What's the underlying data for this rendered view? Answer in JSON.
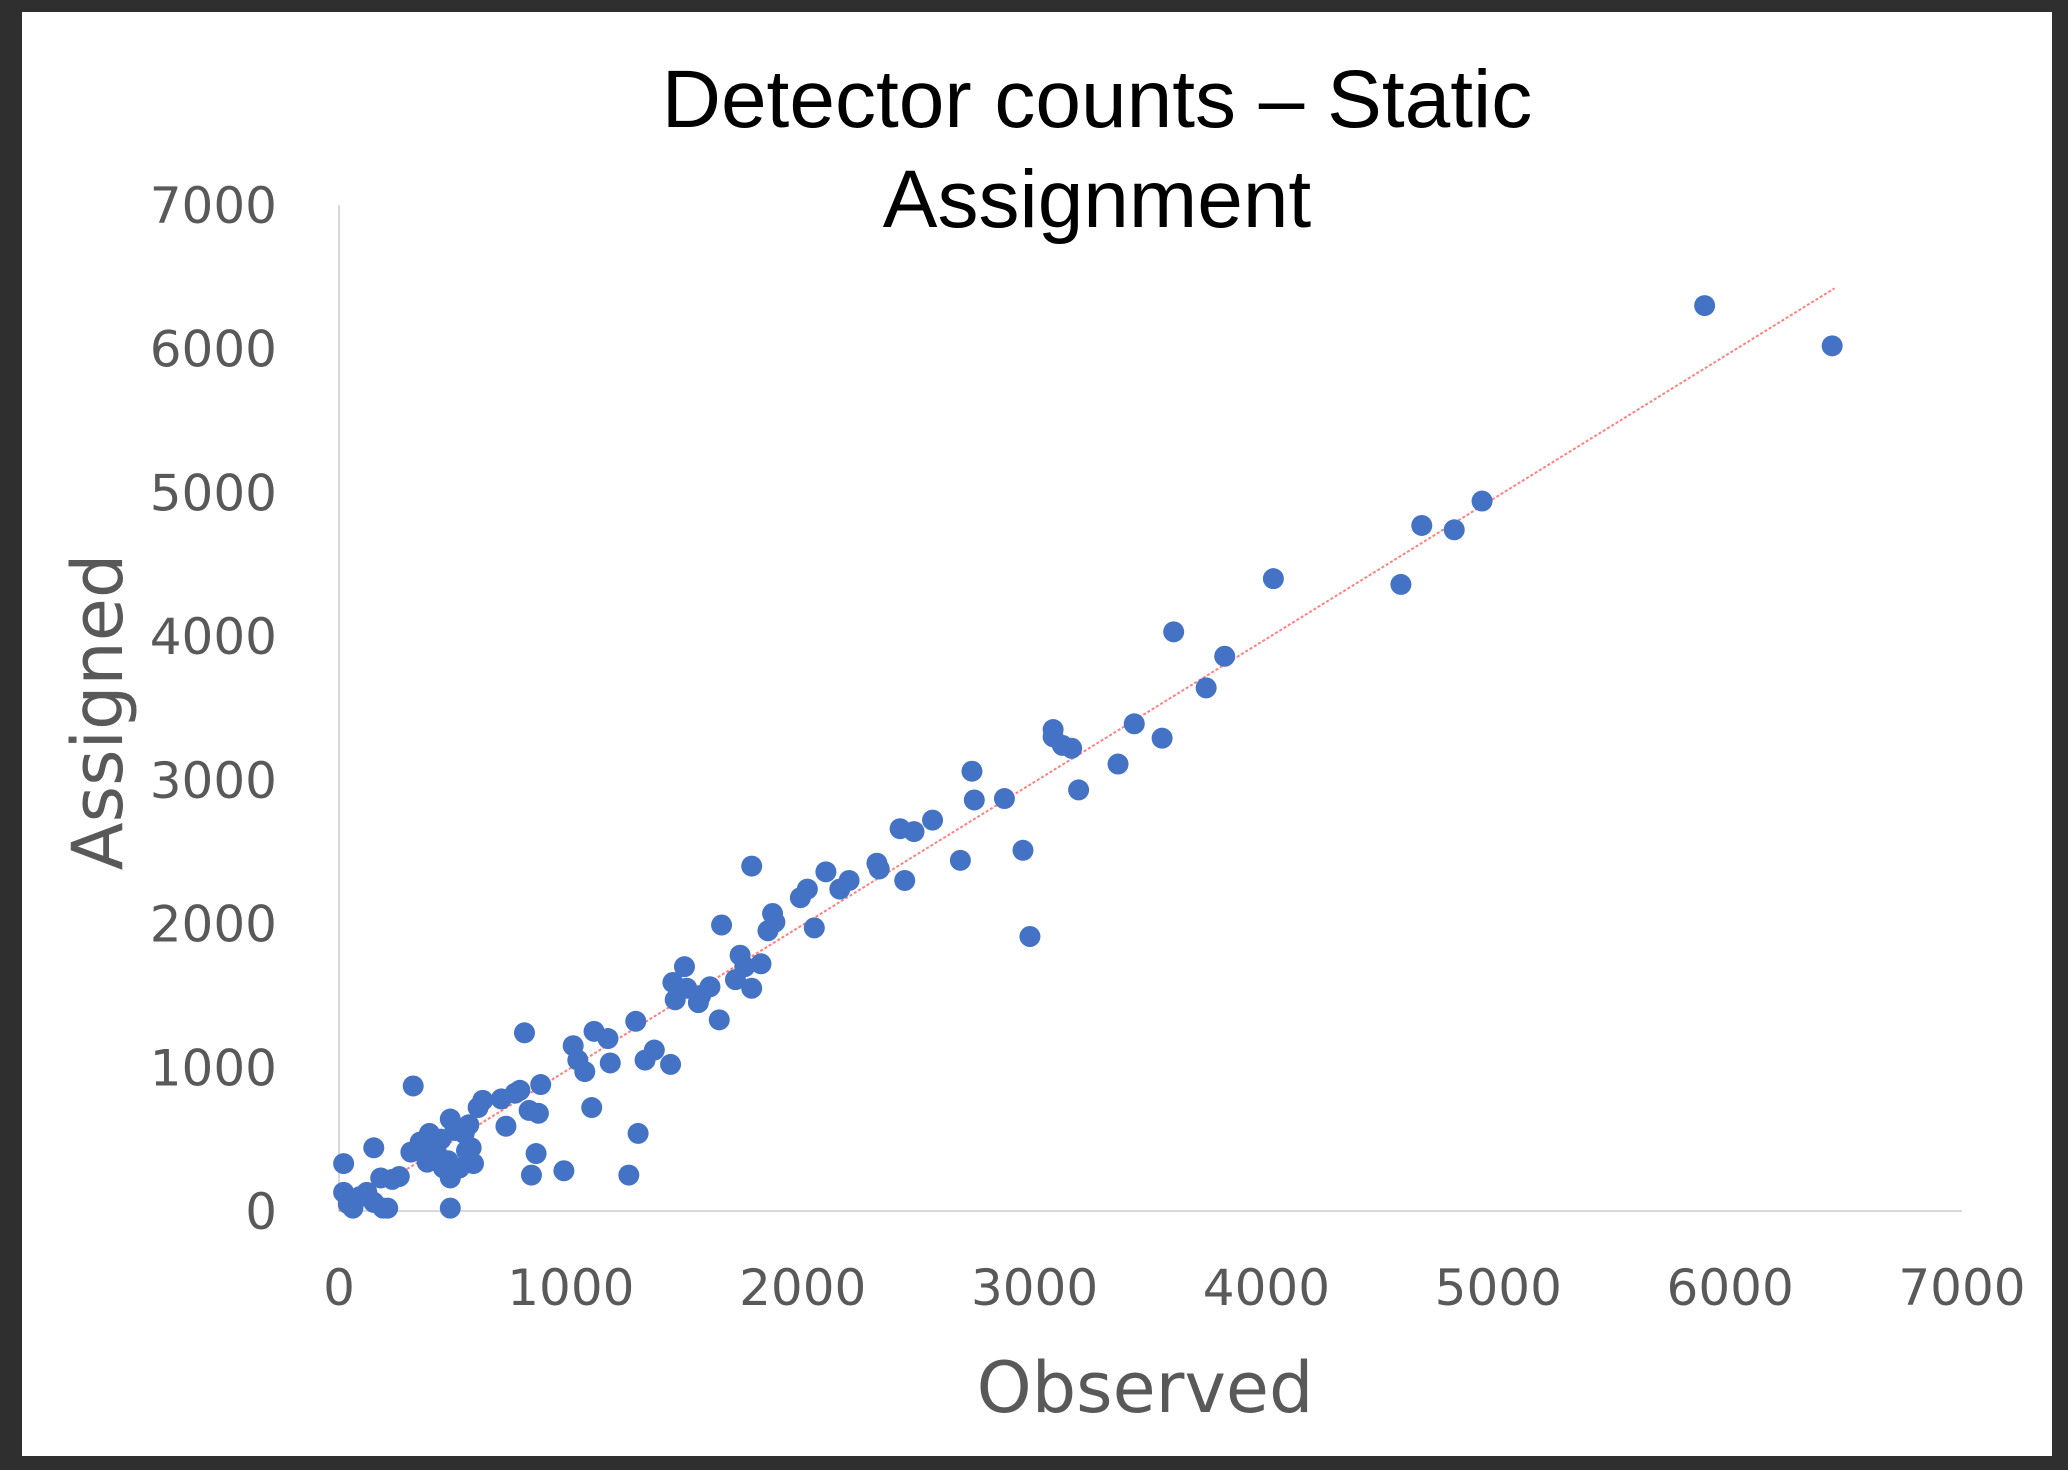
{
  "chart_data": {
    "type": "scatter",
    "title_lines": [
      "Detector counts – Static",
      "Assignment"
    ],
    "xlabel": "Observed",
    "ylabel": "Assigned",
    "xlim": [
      0,
      7000
    ],
    "ylim": [
      0,
      7000
    ],
    "xticks": [
      "0",
      "1000",
      "2000",
      "3000",
      "4000",
      "5000",
      "6000",
      "7000"
    ],
    "yticks": [
      "0",
      "1000",
      "2000",
      "3000",
      "4000",
      "5000",
      "6000",
      "7000"
    ],
    "grid": false,
    "legend": "none",
    "colors": {
      "points": "#4472c4",
      "trendline": "#ff8080",
      "axis": "#d9d9d9"
    },
    "trendline": {
      "x": [
        0,
        6450
      ],
      "y": [
        0,
        6420
      ]
    },
    "points": [
      [
        20,
        330
      ],
      [
        20,
        130
      ],
      [
        40,
        50
      ],
      [
        60,
        20
      ],
      [
        90,
        100
      ],
      [
        120,
        130
      ],
      [
        150,
        60
      ],
      [
        150,
        440
      ],
      [
        180,
        230
      ],
      [
        190,
        20
      ],
      [
        210,
        20
      ],
      [
        230,
        220
      ],
      [
        260,
        240
      ],
      [
        310,
        410
      ],
      [
        320,
        870
      ],
      [
        350,
        480
      ],
      [
        360,
        420
      ],
      [
        380,
        340
      ],
      [
        390,
        540
      ],
      [
        400,
        460
      ],
      [
        420,
        410
      ],
      [
        440,
        500
      ],
      [
        450,
        300
      ],
      [
        470,
        350
      ],
      [
        480,
        230
      ],
      [
        480,
        20
      ],
      [
        480,
        640
      ],
      [
        500,
        560
      ],
      [
        520,
        300
      ],
      [
        540,
        540
      ],
      [
        550,
        420
      ],
      [
        560,
        600
      ],
      [
        570,
        440
      ],
      [
        580,
        330
      ],
      [
        600,
        720
      ],
      [
        620,
        770
      ],
      [
        700,
        780
      ],
      [
        720,
        590
      ],
      [
        760,
        820
      ],
      [
        780,
        840
      ],
      [
        800,
        1240
      ],
      [
        820,
        700
      ],
      [
        830,
        250
      ],
      [
        850,
        400
      ],
      [
        860,
        680
      ],
      [
        870,
        880
      ],
      [
        970,
        280
      ],
      [
        1010,
        1150
      ],
      [
        1030,
        1050
      ],
      [
        1060,
        970
      ],
      [
        1090,
        720
      ],
      [
        1100,
        1250
      ],
      [
        1160,
        1200
      ],
      [
        1170,
        1030
      ],
      [
        1250,
        250
      ],
      [
        1280,
        1320
      ],
      [
        1290,
        540
      ],
      [
        1320,
        1050
      ],
      [
        1360,
        1120
      ],
      [
        1430,
        1020
      ],
      [
        1440,
        1590
      ],
      [
        1450,
        1470
      ],
      [
        1490,
        1700
      ],
      [
        1500,
        1550
      ],
      [
        1550,
        1450
      ],
      [
        1560,
        1500
      ],
      [
        1600,
        1560
      ],
      [
        1640,
        1330
      ],
      [
        1650,
        1990
      ],
      [
        1710,
        1610
      ],
      [
        1730,
        1780
      ],
      [
        1750,
        1700
      ],
      [
        1780,
        2400
      ],
      [
        1780,
        1550
      ],
      [
        1820,
        1720
      ],
      [
        1850,
        1950
      ],
      [
        1870,
        2070
      ],
      [
        1880,
        2010
      ],
      [
        1990,
        2180
      ],
      [
        2020,
        2240
      ],
      [
        2050,
        1970
      ],
      [
        2100,
        2360
      ],
      [
        2160,
        2240
      ],
      [
        2200,
        2300
      ],
      [
        2320,
        2420
      ],
      [
        2330,
        2380
      ],
      [
        2420,
        2660
      ],
      [
        2440,
        2300
      ],
      [
        2480,
        2640
      ],
      [
        2560,
        2720
      ],
      [
        2680,
        2440
      ],
      [
        2730,
        3060
      ],
      [
        2740,
        2860
      ],
      [
        2870,
        2870
      ],
      [
        2950,
        2510
      ],
      [
        2980,
        1910
      ],
      [
        3080,
        3300
      ],
      [
        3080,
        3350
      ],
      [
        3120,
        3240
      ],
      [
        3160,
        3220
      ],
      [
        3190,
        2930
      ],
      [
        3360,
        3110
      ],
      [
        3430,
        3390
      ],
      [
        3550,
        3290
      ],
      [
        3600,
        4030
      ],
      [
        3740,
        3640
      ],
      [
        3820,
        3860
      ],
      [
        4030,
        4400
      ],
      [
        4580,
        4360
      ],
      [
        4670,
        4770
      ],
      [
        4810,
        4740
      ],
      [
        4930,
        4940
      ],
      [
        5890,
        6300
      ],
      [
        6440,
        6020
      ]
    ]
  }
}
